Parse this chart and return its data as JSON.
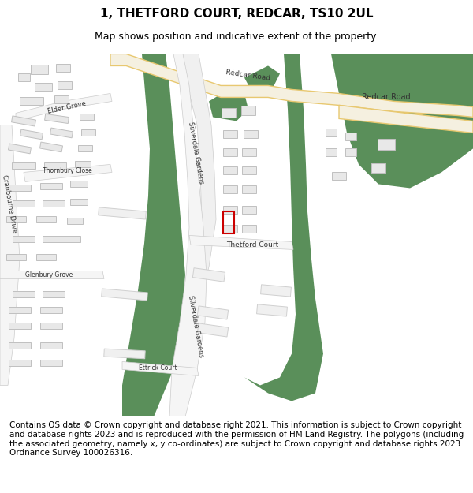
{
  "title": "1, THETFORD COURT, REDCAR, TS10 2UL",
  "subtitle": "Map shows position and indicative extent of the property.",
  "footer": "Contains OS data © Crown copyright and database right 2021. This information is subject to Crown copyright and database rights 2023 and is reproduced with the permission of HM Land Registry. The polygons (including the associated geometry, namely x, y co-ordinates) are subject to Crown copyright and database rights 2023 Ordnance Survey 100026316.",
  "map_bg": "#ffffff",
  "road_color": "#f5f0e0",
  "road_border": "#e8c870",
  "green_color": "#5a8f5a",
  "building_color": "#e8e8e8",
  "building_border": "#c0c0c0",
  "road_label_color": "#333333",
  "property_rect_color": "#cc0000",
  "title_fontsize": 11,
  "subtitle_fontsize": 9,
  "footer_fontsize": 7.5
}
